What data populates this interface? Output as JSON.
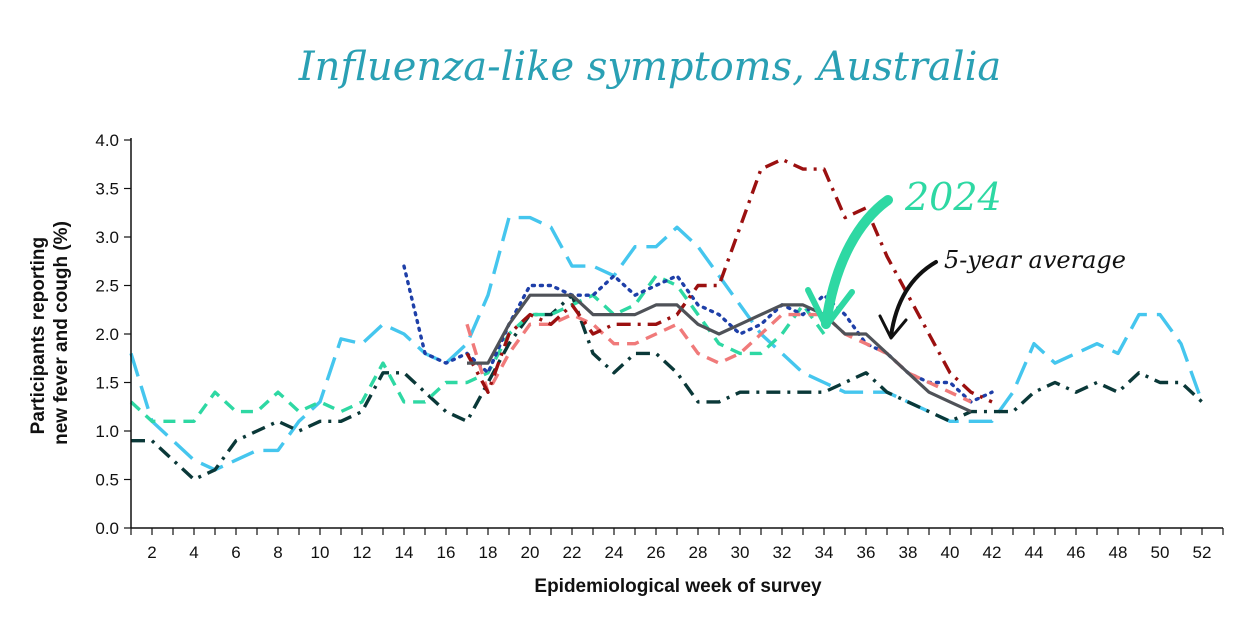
{
  "chart_data": {
    "type": "line",
    "title": "Influenza-like symptoms, Australia",
    "xlabel": "Epidemiological week of survey",
    "ylabel": "Participants reporting new fever and cough (%)",
    "ylabel_lines": [
      "Participants reporting",
      "new fever and cough (%)"
    ],
    "xlim": [
      1,
      53
    ],
    "ylim": [
      0,
      4
    ],
    "x_ticks": [
      2,
      4,
      6,
      8,
      10,
      12,
      14,
      16,
      18,
      20,
      22,
      24,
      26,
      28,
      30,
      32,
      34,
      36,
      38,
      40,
      42,
      44,
      46,
      48,
      50,
      52
    ],
    "y_ticks": [
      "0.0",
      "0.5",
      "1.0",
      "1.5",
      "2.0",
      "2.5",
      "3.0",
      "3.5",
      "4.0"
    ],
    "grid": false,
    "legend": "none",
    "annotations": [
      {
        "text": "2024",
        "color": "#2ed8a3",
        "arrow": "green"
      },
      {
        "text": "5-year average",
        "color": "#111111",
        "arrow": "black"
      }
    ],
    "series": [
      {
        "style": "long-dash",
        "color": "#45c6ee",
        "x": [
          1,
          2,
          3,
          4,
          5,
          6,
          7,
          8,
          9,
          10,
          11,
          12,
          13,
          14,
          15,
          16,
          17,
          18,
          19,
          20,
          21,
          22,
          23,
          24,
          25,
          26,
          27,
          28,
          29,
          30,
          31,
          32,
          33,
          34,
          35,
          36,
          37,
          38,
          39,
          40,
          41,
          42,
          43,
          44,
          45,
          46,
          47,
          48,
          49,
          50,
          51,
          52
        ],
        "y": [
          1.8,
          1.1,
          0.9,
          0.7,
          0.6,
          0.7,
          0.8,
          0.8,
          1.1,
          1.3,
          1.95,
          1.9,
          2.1,
          2.0,
          1.8,
          1.7,
          1.9,
          2.4,
          3.2,
          3.2,
          3.1,
          2.7,
          2.7,
          2.6,
          2.9,
          2.9,
          3.1,
          2.9,
          2.6,
          2.3,
          2.0,
          1.8,
          1.6,
          1.5,
          1.4,
          1.4,
          1.4,
          1.3,
          1.2,
          1.1,
          1.1,
          1.1,
          1.4,
          1.9,
          1.7,
          1.8,
          1.9,
          1.8,
          2.2,
          2.2,
          1.9,
          1.3
        ]
      },
      {
        "style": "dash-dot",
        "color": "#0a3838",
        "x": [
          1,
          2,
          3,
          4,
          5,
          6,
          7,
          8,
          9,
          10,
          11,
          12,
          13,
          14,
          15,
          16,
          17,
          18,
          19,
          20,
          21,
          22,
          23,
          24,
          25,
          26,
          27,
          28,
          29,
          30,
          31,
          32,
          33,
          34,
          35,
          36,
          37,
          38,
          39,
          40,
          41,
          42,
          43,
          44,
          45,
          46,
          47,
          48,
          49,
          50,
          51,
          52
        ],
        "y": [
          0.9,
          0.9,
          0.7,
          0.5,
          0.6,
          0.9,
          1.0,
          1.1,
          1.0,
          1.1,
          1.1,
          1.2,
          1.6,
          1.6,
          1.4,
          1.2,
          1.1,
          1.5,
          1.9,
          2.2,
          2.2,
          2.4,
          1.8,
          1.6,
          1.8,
          1.8,
          1.6,
          1.3,
          1.3,
          1.4,
          1.4,
          1.4,
          1.4,
          1.4,
          1.5,
          1.6,
          1.4,
          1.3,
          1.2,
          1.1,
          1.2,
          1.2,
          1.2,
          1.4,
          1.5,
          1.4,
          1.5,
          1.4,
          1.6,
          1.5,
          1.5,
          1.3
        ]
      },
      {
        "style": "dash",
        "color": "#2ed8a3",
        "x": [
          1,
          2,
          3,
          4,
          5,
          6,
          7,
          8,
          9,
          10,
          11,
          12,
          13,
          14,
          15,
          16,
          17,
          18,
          19,
          20,
          21,
          22,
          23,
          24,
          25,
          26,
          27,
          28,
          29,
          30,
          31,
          32,
          33,
          34
        ],
        "y": [
          1.3,
          1.1,
          1.1,
          1.1,
          1.4,
          1.2,
          1.2,
          1.4,
          1.2,
          1.3,
          1.2,
          1.3,
          1.7,
          1.3,
          1.3,
          1.5,
          1.5,
          1.6,
          2.0,
          2.2,
          2.2,
          2.3,
          2.4,
          2.2,
          2.3,
          2.6,
          2.5,
          2.2,
          1.9,
          1.8,
          1.8,
          2.0,
          2.3,
          2.0
        ]
      },
      {
        "style": "dotted",
        "color": "#1e3fa8",
        "x": [
          14,
          15,
          16,
          17,
          18,
          19,
          20,
          21,
          22,
          23,
          24,
          25,
          26,
          27,
          28,
          29,
          30,
          31,
          32,
          33,
          34,
          35,
          36,
          37,
          38,
          39,
          40,
          41,
          42
        ],
        "y": [
          2.7,
          1.8,
          1.7,
          1.8,
          1.6,
          2.1,
          2.5,
          2.5,
          2.4,
          2.4,
          2.6,
          2.4,
          2.5,
          2.6,
          2.3,
          2.2,
          2.0,
          2.1,
          2.3,
          2.2,
          2.4,
          2.2,
          1.9,
          1.8,
          1.6,
          1.5,
          1.5,
          1.3,
          1.4
        ]
      },
      {
        "style": "dash",
        "color": "#f07a7a",
        "x": [
          17,
          18,
          19,
          20,
          21,
          22,
          23,
          24,
          25,
          26,
          27,
          28,
          29,
          30,
          31,
          32,
          33,
          34,
          35,
          36,
          37,
          38,
          39,
          40,
          41
        ],
        "y": [
          2.1,
          1.4,
          1.8,
          2.1,
          2.1,
          2.2,
          2.1,
          1.9,
          1.9,
          2.0,
          2.1,
          1.8,
          1.7,
          1.8,
          2.0,
          2.2,
          2.2,
          2.2,
          2.0,
          1.9,
          1.8,
          1.6,
          1.5,
          1.4,
          1.3
        ]
      },
      {
        "style": "dash-dot",
        "color": "#9b1010",
        "x": [
          17,
          18,
          19,
          20,
          21,
          22,
          23,
          24,
          25,
          26,
          27,
          28,
          29,
          30,
          31,
          32,
          33,
          34,
          35,
          36,
          37,
          38,
          39,
          40,
          41,
          42
        ],
        "y": [
          1.8,
          1.4,
          2.0,
          2.2,
          2.1,
          2.3,
          2.0,
          2.1,
          2.1,
          2.1,
          2.2,
          2.5,
          2.5,
          3.1,
          3.7,
          3.8,
          3.7,
          3.7,
          3.2,
          3.3,
          2.8,
          2.4,
          2.0,
          1.6,
          1.4,
          1.3
        ]
      },
      {
        "style": "solid",
        "color": "#4f5258",
        "x": [
          17,
          18,
          19,
          20,
          21,
          22,
          23,
          24,
          25,
          26,
          27,
          28,
          29,
          30,
          31,
          32,
          33,
          34,
          35,
          36,
          37,
          38,
          39,
          40,
          41
        ],
        "y": [
          1.7,
          1.7,
          2.1,
          2.4,
          2.4,
          2.4,
          2.2,
          2.2,
          2.2,
          2.3,
          2.3,
          2.1,
          2.0,
          2.1,
          2.2,
          2.3,
          2.3,
          2.2,
          2.0,
          2.0,
          1.8,
          1.6,
          1.4,
          1.3,
          1.2
        ]
      }
    ]
  }
}
